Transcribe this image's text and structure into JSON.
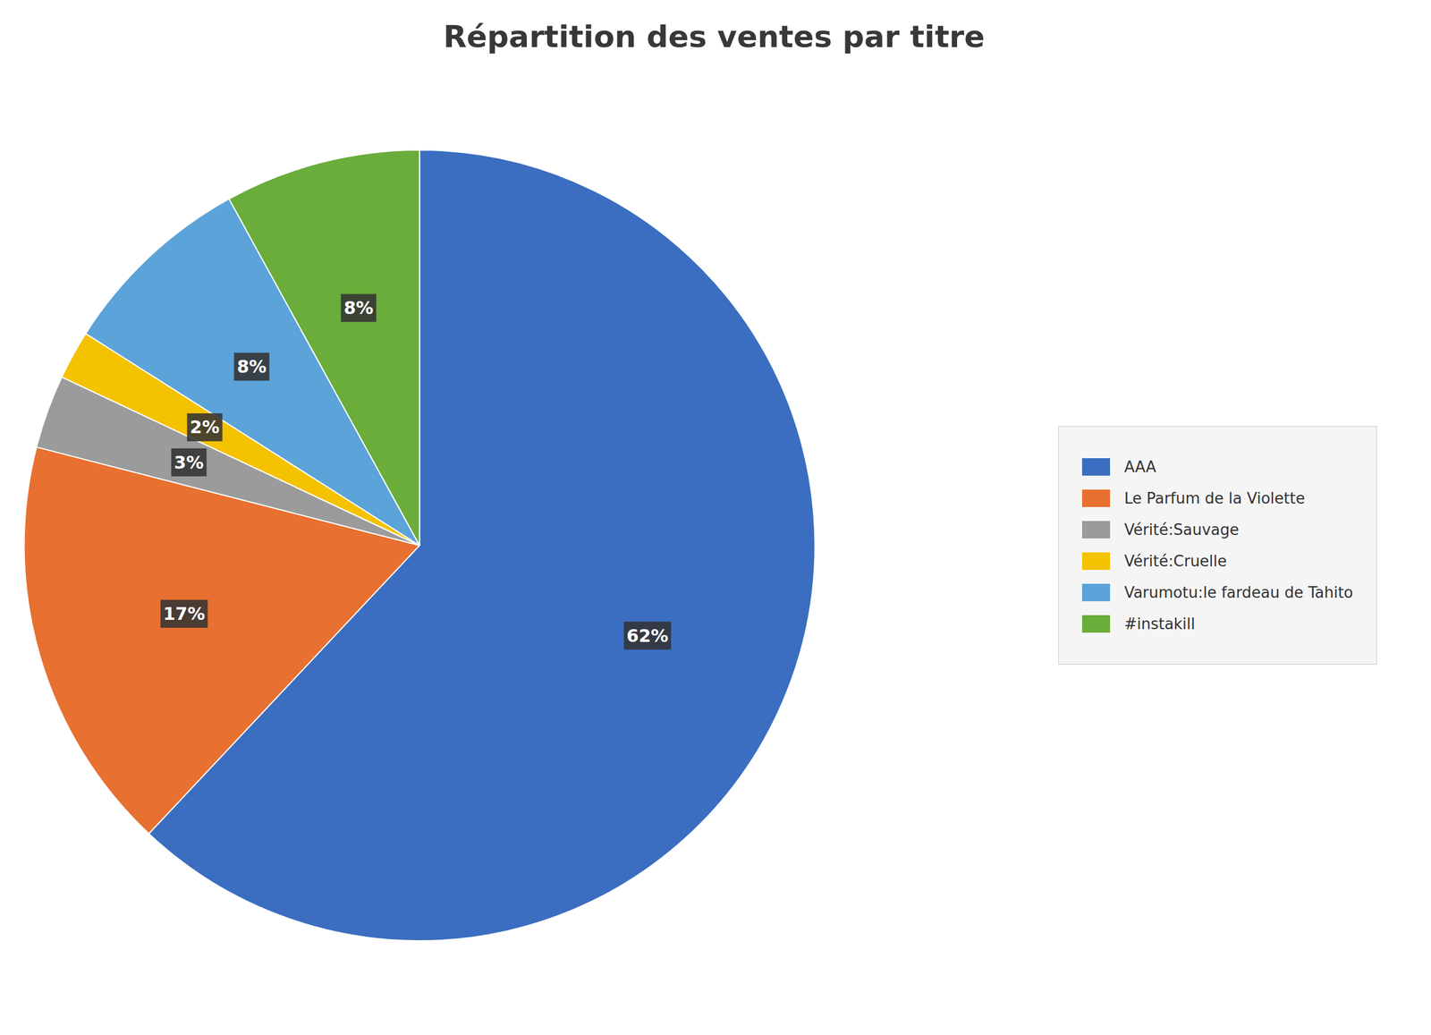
{
  "chart_data": {
    "type": "pie",
    "title": "Répartition des ventes par titre",
    "categories": [
      "AAA",
      "Le Parfum de la Violette",
      "Vérité:Sauvage",
      "Vérité:Cruelle",
      "Varumotu:le fardeau de Tahito",
      "#instakill"
    ],
    "values": [
      62,
      17,
      3,
      2,
      8,
      8
    ],
    "value_labels": [
      "62%",
      "17%",
      "3%",
      "2%",
      "8%",
      "8%"
    ],
    "colors": [
      "#3B6EC0",
      "#E87030",
      "#9B9B9B",
      "#F5C200",
      "#5BA3D9",
      "#6AAD3A"
    ],
    "data_labels": true,
    "legend": "right"
  }
}
